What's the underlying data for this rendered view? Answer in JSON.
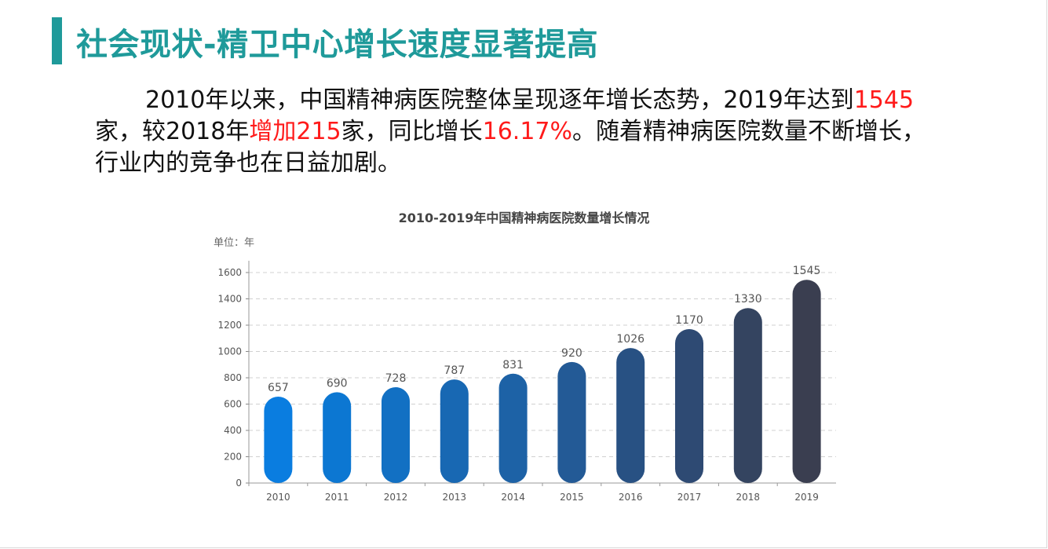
{
  "title": "社会现状-精卫中心增长速度显著提高",
  "paragraph": {
    "t1": "2010年以来，中国精神病医院整体呈现逐年增长态势，2019年达到",
    "h1": "1545",
    "t2": "家，较2018年",
    "h2": "增加215",
    "t3": "家，同比增长",
    "h3": "16.17%",
    "t4": "。随着精神病医院数量不断增长，行业内的竞争也在日益加剧。"
  },
  "colors": {
    "title": "#1f9a9a",
    "highlight": "#ff1a1a",
    "bars": [
      "#0a7de0",
      "#0c77d2",
      "#1270c3",
      "#1868b3",
      "#1d62a6",
      "#235a96",
      "#285183",
      "#2e4a73",
      "#344460",
      "#3a3e50"
    ]
  },
  "chart_data": {
    "type": "bar",
    "title": "2010-2019年中国精神病医院数量增长情况",
    "unit_label": "单位：年",
    "categories": [
      "2010",
      "2011",
      "2012",
      "2013",
      "2014",
      "2015",
      "2016",
      "2017",
      "2018",
      "2019"
    ],
    "values": [
      657,
      690,
      728,
      787,
      831,
      920,
      1026,
      1170,
      1330,
      1545
    ],
    "yticks": [
      0,
      200,
      400,
      600,
      800,
      1000,
      1200,
      1400,
      1600
    ],
    "ylim": [
      0,
      1600
    ],
    "grid": true,
    "data_labels": true
  }
}
